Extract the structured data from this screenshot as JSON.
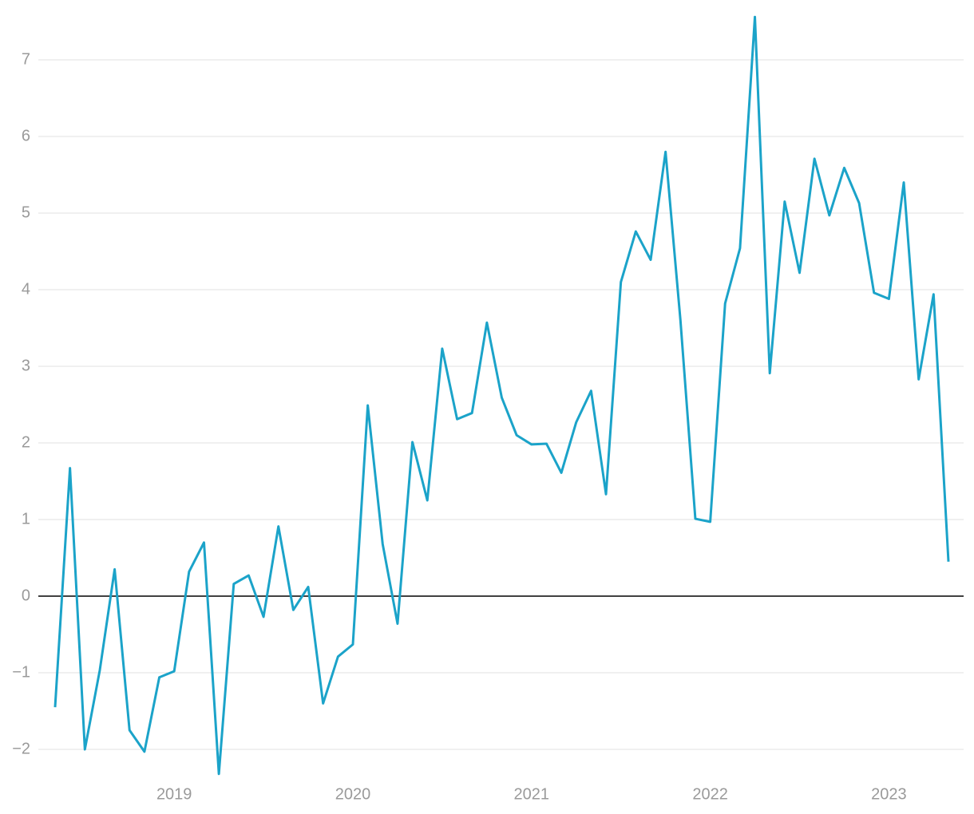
{
  "chart_data": {
    "type": "line",
    "x": [
      "2018-05",
      "2018-06",
      "2018-07",
      "2018-08",
      "2018-09",
      "2018-10",
      "2018-11",
      "2018-12",
      "2019-01",
      "2019-02",
      "2019-03",
      "2019-04",
      "2019-05",
      "2019-06",
      "2019-07",
      "2019-08",
      "2019-09",
      "2019-10",
      "2019-11",
      "2019-12",
      "2020-01",
      "2020-02",
      "2020-03",
      "2020-04",
      "2020-05",
      "2020-06",
      "2020-07",
      "2020-08",
      "2020-09",
      "2020-10",
      "2020-11",
      "2020-12",
      "2021-01",
      "2021-02",
      "2021-03",
      "2021-04",
      "2021-05",
      "2021-06",
      "2021-07",
      "2021-08",
      "2021-09",
      "2021-10",
      "2021-11",
      "2021-12",
      "2022-01",
      "2022-02",
      "2022-03",
      "2022-04",
      "2022-05",
      "2022-06",
      "2022-07",
      "2022-08",
      "2022-09",
      "2022-10",
      "2022-11",
      "2022-12",
      "2023-01",
      "2023-02",
      "2023-03",
      "2023-04",
      "2023-05"
    ],
    "series": [
      {
        "color": "#1ba3c9",
        "values": [
          -1.45,
          1.67,
          -2.0,
          -0.97,
          0.35,
          -1.75,
          -2.03,
          -1.06,
          -0.98,
          0.32,
          0.7,
          -2.32,
          0.16,
          0.27,
          -0.27,
          0.91,
          -0.18,
          0.12,
          -1.4,
          -0.79,
          -0.63,
          2.49,
          0.68,
          -0.36,
          2.01,
          1.25,
          3.23,
          2.31,
          2.39,
          3.57,
          2.59,
          2.1,
          1.98,
          1.99,
          1.61,
          2.27,
          2.68,
          1.33,
          4.1,
          4.76,
          4.39,
          5.8,
          3.6,
          1.01,
          0.97,
          3.82,
          4.54,
          7.56,
          2.91,
          5.15,
          4.22,
          5.71,
          4.97,
          5.59,
          5.13,
          3.96,
          3.88,
          5.4,
          2.83,
          3.94,
          0.45
        ]
      }
    ],
    "xlim": [
      "2018-05",
      "2023-05"
    ],
    "xticks": [
      {
        "value": "2019-01",
        "label": "2019"
      },
      {
        "value": "2020-01",
        "label": "2020"
      },
      {
        "value": "2021-01",
        "label": "2021"
      },
      {
        "value": "2022-01",
        "label": "2022"
      },
      {
        "value": "2023-01",
        "label": "2023"
      }
    ],
    "ylim": [
      -2.4,
      7.8
    ],
    "yticks": [
      {
        "value": -2,
        "label": "−2"
      },
      {
        "value": -1,
        "label": "−1"
      },
      0,
      1,
      2,
      3,
      4,
      5,
      6,
      7
    ],
    "grid": true
  }
}
